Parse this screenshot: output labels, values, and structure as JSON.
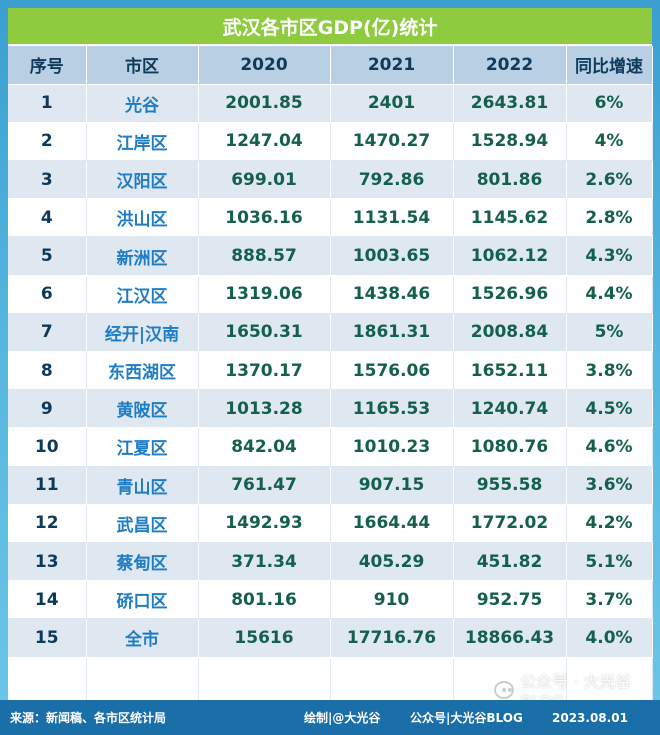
{
  "chart_data": {
    "type": "table",
    "title": "武汉各市区GDP(亿)统计",
    "columns": [
      "序号",
      "市区",
      "2020",
      "2021",
      "2022",
      "同比增速"
    ],
    "rows": [
      [
        "1",
        "光谷",
        "2001.85",
        "2401",
        "2643.81",
        "6%"
      ],
      [
        "2",
        "江岸区",
        "1247.04",
        "1470.27",
        "1528.94",
        "4%"
      ],
      [
        "3",
        "汉阳区",
        "699.01",
        "792.86",
        "801.86",
        "2.6%"
      ],
      [
        "4",
        "洪山区",
        "1036.16",
        "1131.54",
        "1145.62",
        "2.8%"
      ],
      [
        "5",
        "新洲区",
        "888.57",
        "1003.65",
        "1062.12",
        "4.3%"
      ],
      [
        "6",
        "江汉区",
        "1319.06",
        "1438.46",
        "1526.96",
        "4.4%"
      ],
      [
        "7",
        "经开|汉南",
        "1650.31",
        "1861.31",
        "2008.84",
        "5%"
      ],
      [
        "8",
        "东西湖区",
        "1370.17",
        "1576.06",
        "1652.11",
        "3.8%"
      ],
      [
        "9",
        "黄陂区",
        "1013.28",
        "1165.53",
        "1240.74",
        "4.5%"
      ],
      [
        "10",
        "江夏区",
        "842.04",
        "1010.23",
        "1080.76",
        "4.6%"
      ],
      [
        "11",
        "青山区",
        "761.47",
        "907.15",
        "955.58",
        "3.6%"
      ],
      [
        "12",
        "武昌区",
        "1492.93",
        "1664.44",
        "1772.02",
        "4.2%"
      ],
      [
        "13",
        "蔡甸区",
        "371.34",
        "405.29",
        "451.82",
        "5.1%"
      ],
      [
        "14",
        "硚口区",
        "801.16",
        "910",
        "952.75",
        "3.7%"
      ],
      [
        "15",
        "全市",
        "15616",
        "17716.76",
        "18866.43",
        "4.0%"
      ]
    ]
  },
  "footer": {
    "source": "来源：新闻稿、各市区统计局",
    "drawn_by": "绘制|@大光谷",
    "official": "公众号|大光谷BLOG",
    "date": "2023.08.01"
  },
  "watermark": "公众号 · 大光谷BLOG",
  "colors": {
    "title_bg": "#8ecb3f",
    "header_bg": "#b9cfe3",
    "row_alt_bg": "#dfe7f1",
    "city_text": "#1f7dc6",
    "number_text": "#14604d",
    "footer_bg": "#1b6fa8",
    "page_bg": "#4aaedb"
  }
}
